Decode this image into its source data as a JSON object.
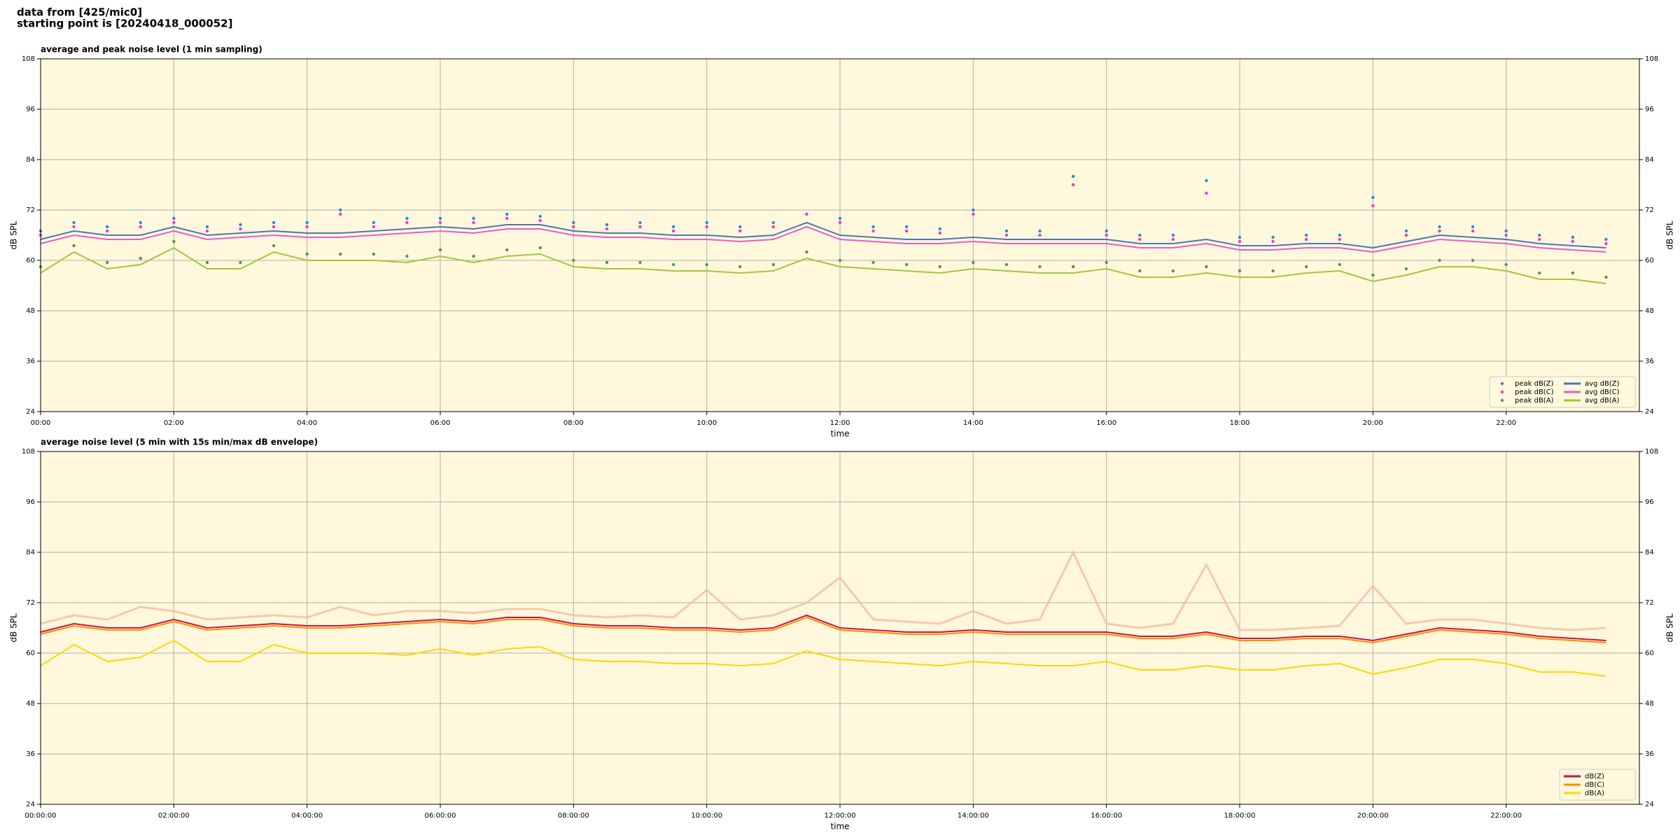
{
  "header": {
    "lines": [
      "data from [425/mic0]",
      "starting point is [20240418_000052]"
    ]
  },
  "chart_data": [
    {
      "type": "line",
      "title": "average and peak noise level (1 min sampling)",
      "xlabel": "time",
      "ylabel": "dB SPL",
      "x": [
        0,
        0.5,
        1,
        1.5,
        2,
        2.5,
        3,
        3.5,
        4,
        4.5,
        5,
        5.5,
        6,
        6.5,
        7,
        7.5,
        8,
        8.5,
        9,
        9.5,
        10,
        10.5,
        11,
        11.5,
        12,
        12.5,
        13,
        13.5,
        14,
        14.5,
        15,
        15.5,
        16,
        16.5,
        17,
        17.5,
        18,
        18.5,
        19,
        19.5,
        20,
        20.5,
        21,
        21.5,
        22,
        22.5,
        23,
        23.5
      ],
      "xlim": [
        0,
        24
      ],
      "xticks": [
        {
          "value": 0,
          "label": "00:00"
        },
        {
          "value": 2,
          "label": "02:00"
        },
        {
          "value": 4,
          "label": "04:00"
        },
        {
          "value": 6,
          "label": "06:00"
        },
        {
          "value": 8,
          "label": "08:00"
        },
        {
          "value": 10,
          "label": "10:00"
        },
        {
          "value": 12,
          "label": "12:00"
        },
        {
          "value": 14,
          "label": "14:00"
        },
        {
          "value": 16,
          "label": "16:00"
        },
        {
          "value": 18,
          "label": "18:00"
        },
        {
          "value": 20,
          "label": "20:00"
        },
        {
          "value": 22,
          "label": "22:00"
        }
      ],
      "ylim": [
        24,
        108
      ],
      "yticks": [
        24,
        36,
        48,
        60,
        72,
        84,
        96,
        108
      ],
      "grid": true,
      "legend": "lower right",
      "legend_columns": 2,
      "series": [
        {
          "name": "peak dB(Z)",
          "color": "#1f8fd0",
          "style": "dots",
          "values": [
            67,
            69,
            68,
            69,
            70,
            68,
            68.5,
            69,
            69,
            72,
            69,
            70,
            70,
            70,
            71,
            70.5,
            69,
            68.5,
            69,
            68,
            69,
            68,
            69,
            71,
            70,
            68,
            68,
            67.5,
            72,
            67,
            67,
            80,
            67,
            66,
            66,
            79,
            65.5,
            65.5,
            66,
            66,
            75,
            67,
            68,
            68,
            67,
            66,
            65.5,
            65
          ]
        },
        {
          "name": "peak dB(C)",
          "color": "#ff2fd0",
          "style": "dots",
          "values": [
            66,
            68,
            67,
            68,
            69,
            67,
            67.5,
            68,
            68,
            71,
            68,
            69,
            69,
            69,
            70,
            69.5,
            68,
            67.5,
            68,
            67,
            68,
            67,
            68,
            71,
            69,
            67,
            67,
            66.5,
            71,
            66,
            66,
            78,
            66,
            65,
            65,
            76,
            64.5,
            64.5,
            65,
            65,
            73,
            66,
            67,
            67,
            66,
            65,
            64.5,
            64
          ]
        },
        {
          "name": "peak dB(A)",
          "color": "#4c9a4c",
          "style": "dots",
          "values": [
            58.5,
            63.5,
            59.5,
            60.5,
            64.5,
            59.5,
            59.5,
            63.5,
            61.5,
            61.5,
            61.5,
            61,
            62.5,
            61,
            62.5,
            63,
            60,
            59.5,
            59.5,
            59,
            59,
            58.5,
            59,
            62,
            60,
            59.5,
            59,
            58.5,
            59.5,
            59,
            58.5,
            58.5,
            59.5,
            57.5,
            57.5,
            58.5,
            57.5,
            57.5,
            58.5,
            59,
            56.5,
            58,
            60,
            60,
            59,
            57,
            57,
            56
          ]
        },
        {
          "name": "avg dB(Z)",
          "color": "#4a78b0",
          "style": "line",
          "values": [
            65,
            67,
            66,
            66,
            68,
            66,
            66.5,
            67,
            66.5,
            66.5,
            67,
            67.5,
            68,
            67.5,
            68.5,
            68.5,
            67,
            66.5,
            66.5,
            66,
            66,
            65.5,
            66,
            69,
            66,
            65.5,
            65,
            65,
            65.5,
            65,
            65,
            65,
            65,
            64,
            64,
            65,
            63.5,
            63.5,
            64,
            64,
            63,
            64.5,
            66,
            65.5,
            65,
            64,
            63.5,
            63
          ]
        },
        {
          "name": "avg dB(C)",
          "color": "#e85ccc",
          "style": "line",
          "values": [
            64,
            66,
            65,
            65,
            67,
            65,
            65.5,
            66,
            65.5,
            65.5,
            66,
            66.5,
            67,
            66.5,
            67.5,
            67.5,
            66,
            65.5,
            65.5,
            65,
            65,
            64.5,
            65,
            68,
            65,
            64.5,
            64,
            64,
            64.5,
            64,
            64,
            64,
            64,
            63,
            63,
            64,
            62.5,
            62.5,
            63,
            63,
            62,
            63.5,
            65,
            64.5,
            64,
            63,
            62.5,
            62
          ]
        },
        {
          "name": "avg dB(A)",
          "color": "#a4c639",
          "style": "line",
          "values": [
            57,
            62,
            58,
            59,
            63,
            58,
            58,
            62,
            60,
            60,
            60,
            59.5,
            61,
            59.5,
            61,
            61.5,
            58.5,
            58,
            58,
            57.5,
            57.5,
            57,
            57.5,
            60.5,
            58.5,
            58,
            57.5,
            57,
            58,
            57.5,
            57,
            57,
            58,
            56,
            56,
            57,
            56,
            56,
            57,
            57.5,
            55,
            56.5,
            58.5,
            58.5,
            57.5,
            55.5,
            55.5,
            54.5
          ]
        }
      ]
    },
    {
      "type": "line",
      "title": "average noise level (5 min with 15s min/max dB envelope)",
      "xlabel": "time",
      "ylabel": "dB SPL",
      "x": [
        0,
        0.5,
        1,
        1.5,
        2,
        2.5,
        3,
        3.5,
        4,
        4.5,
        5,
        5.5,
        6,
        6.5,
        7,
        7.5,
        8,
        8.5,
        9,
        9.5,
        10,
        10.5,
        11,
        11.5,
        12,
        12.5,
        13,
        13.5,
        14,
        14.5,
        15,
        15.5,
        16,
        16.5,
        17,
        17.5,
        18,
        18.5,
        19,
        19.5,
        20,
        20.5,
        21,
        21.5,
        22,
        22.5,
        23,
        23.5
      ],
      "xlim": [
        0,
        24
      ],
      "xticks": [
        {
          "value": 0,
          "label": "00:00:00"
        },
        {
          "value": 2,
          "label": "02:00:00"
        },
        {
          "value": 4,
          "label": "04:00:00"
        },
        {
          "value": 6,
          "label": "06:00:00"
        },
        {
          "value": 8,
          "label": "08:00:00"
        },
        {
          "value": 10,
          "label": "10:00:00"
        },
        {
          "value": 12,
          "label": "12:00:00"
        },
        {
          "value": 14,
          "label": "14:00:00"
        },
        {
          "value": 16,
          "label": "16:00:00"
        },
        {
          "value": 18,
          "label": "18:00:00"
        },
        {
          "value": 20,
          "label": "20:00:00"
        },
        {
          "value": 22,
          "label": "22:00:00"
        }
      ],
      "ylim": [
        24,
        108
      ],
      "yticks": [
        24,
        36,
        48,
        60,
        72,
        84,
        96,
        108
      ],
      "grid": true,
      "legend": "lower right",
      "legend_columns": 1,
      "series": [
        {
          "color": "#f4bca4",
          "style": "envelope",
          "values": [
            67,
            69,
            68,
            71,
            70,
            68,
            68.5,
            69,
            68.5,
            71,
            69,
            70,
            70,
            69.5,
            70.5,
            70.5,
            69,
            68.5,
            69,
            68.5,
            75,
            68,
            69,
            72,
            78,
            68,
            67.5,
            67,
            70,
            67,
            68,
            84,
            67,
            66,
            67,
            81,
            65.5,
            65.5,
            66,
            66.5,
            76,
            67,
            68,
            68,
            67,
            66,
            65.5,
            66
          ]
        },
        {
          "name": "dB(Z)",
          "color": "#cc1144",
          "style": "line",
          "values": [
            65,
            67,
            66,
            66,
            68,
            66,
            66.5,
            67,
            66.5,
            66.5,
            67,
            67.5,
            68,
            67.5,
            68.5,
            68.5,
            67,
            66.5,
            66.5,
            66,
            66,
            65.5,
            66,
            69,
            66,
            65.5,
            65,
            65,
            65.5,
            65,
            65,
            65,
            65,
            64,
            64,
            65,
            63.5,
            63.5,
            64,
            64,
            63,
            64.5,
            66,
            65.5,
            65,
            64,
            63.5,
            63
          ]
        },
        {
          "name": "dB(C)",
          "color": "#ff8c00",
          "style": "line",
          "values": [
            64.5,
            66.5,
            65.5,
            65.5,
            67.5,
            65.5,
            66,
            66.5,
            66,
            66,
            66.5,
            67,
            67.5,
            67,
            68,
            68,
            66.5,
            66,
            66,
            65.5,
            65.5,
            65,
            65.5,
            68.5,
            65.5,
            65,
            64.5,
            64.5,
            65,
            64.5,
            64.5,
            64.5,
            64.5,
            63.5,
            63.5,
            64.5,
            63,
            63,
            63.5,
            63.5,
            62.5,
            64,
            65.5,
            65,
            64.5,
            63.5,
            63,
            62.5
          ]
        },
        {
          "name": "dB(A)",
          "color": "#ffd700",
          "style": "line",
          "values": [
            57,
            62,
            58,
            59,
            63,
            58,
            58,
            62,
            60,
            60,
            60,
            59.5,
            61,
            59.5,
            61,
            61.5,
            58.5,
            58,
            58,
            57.5,
            57.5,
            57,
            57.5,
            60.5,
            58.5,
            58,
            57.5,
            57,
            58,
            57.5,
            57,
            57,
            58,
            56,
            56,
            57,
            56,
            56,
            57,
            57.5,
            55,
            56.5,
            58.5,
            58.5,
            57.5,
            55.5,
            55.5,
            54.5
          ]
        }
      ]
    }
  ]
}
